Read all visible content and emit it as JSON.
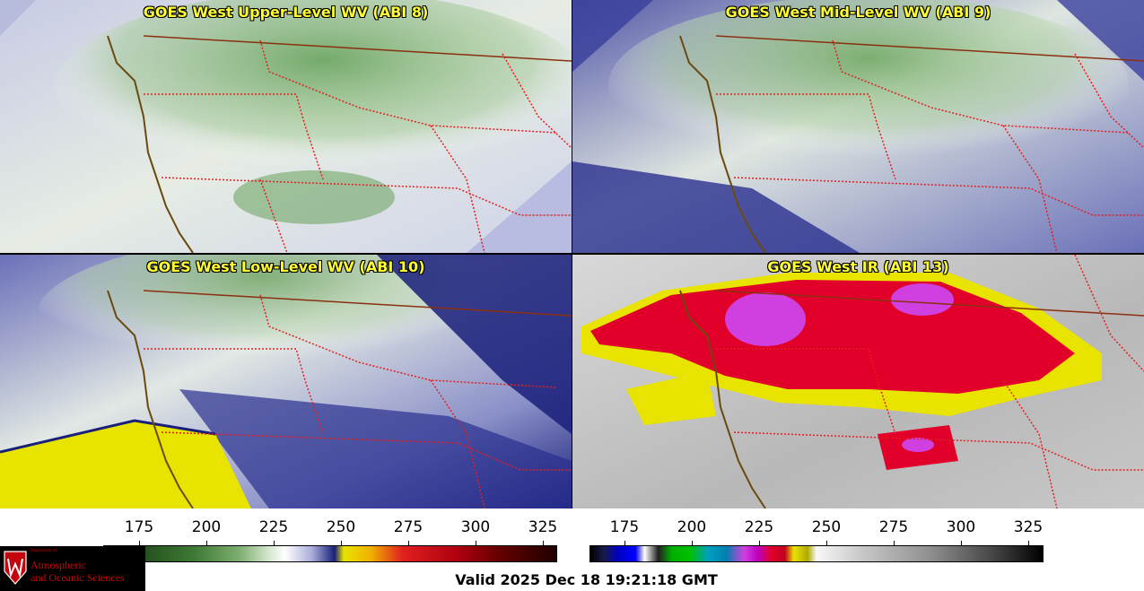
{
  "panels": {
    "upper": {
      "title": "GOES West Upper-Level WV (ABI 8)"
    },
    "mid": {
      "title": "GOES West Mid-Level WV (ABI 9)"
    },
    "low": {
      "title": "GOES West Low-Level WV (ABI 10)"
    },
    "ir": {
      "title": "GOES West IR (ABI 13)"
    }
  },
  "colorbars": {
    "wv": {
      "ticks": [
        "175",
        "200",
        "225",
        "250",
        "275",
        "300",
        "325"
      ]
    },
    "ir": {
      "ticks": [
        "175",
        "200",
        "225",
        "250",
        "275",
        "300",
        "325"
      ]
    }
  },
  "footer": {
    "valid_text": "Valid 2025 Dec 18 19:21:18 GMT"
  },
  "logo": {
    "dept": "Department of",
    "line1": "Atmospheric",
    "line2": "and Oceanic Sciences"
  },
  "colors": {
    "title_text": "#ffff33",
    "border_state": "#e02020",
    "coast": "#6b4a10",
    "wv_green": "#7fae72",
    "wv_blue": "#1a1f7a",
    "ir_red": "#e0002a",
    "ir_magenta": "#d040e0",
    "ir_yellow": "#e8e400"
  }
}
